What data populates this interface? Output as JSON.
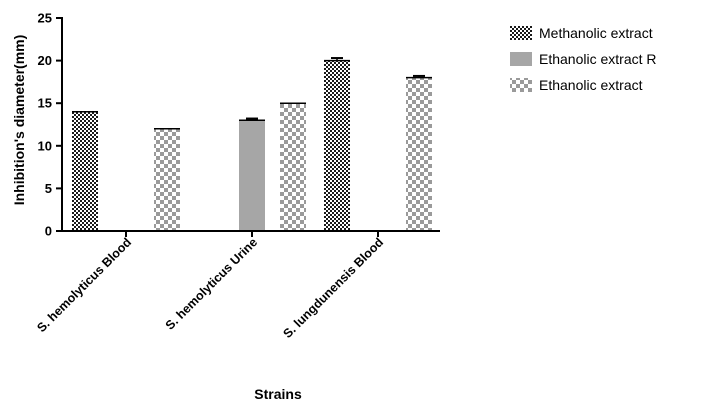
{
  "chart_data": {
    "type": "bar",
    "title": "",
    "xlabel": "Strains",
    "ylabel": "Inhibition's diameter(mm)",
    "ylim": [
      0,
      25
    ],
    "yticks": [
      0,
      5,
      10,
      15,
      20,
      25
    ],
    "grid": false,
    "legend": "right",
    "categories": [
      "S. hemolyticus Blood",
      "S. hemolyticus Urine",
      "S. lungdunensis Blood"
    ],
    "series": [
      {
        "name": "Methanolic extract",
        "values": [
          14,
          null,
          20
        ],
        "errors": [
          0,
          null,
          0.3
        ],
        "pattern": "dark-checker",
        "color": "#2a2a2a"
      },
      {
        "name": "Ethanolic extract R",
        "values": [
          null,
          13,
          null
        ],
        "errors": [
          null,
          0.2,
          null
        ],
        "pattern": "solid",
        "color": "#a6a6a6"
      },
      {
        "name": "Ethanolic extract",
        "values": [
          12,
          15,
          18
        ],
        "errors": [
          0,
          0,
          0.2
        ],
        "pattern": "light-checker",
        "color": "#9a9a9a"
      }
    ]
  }
}
